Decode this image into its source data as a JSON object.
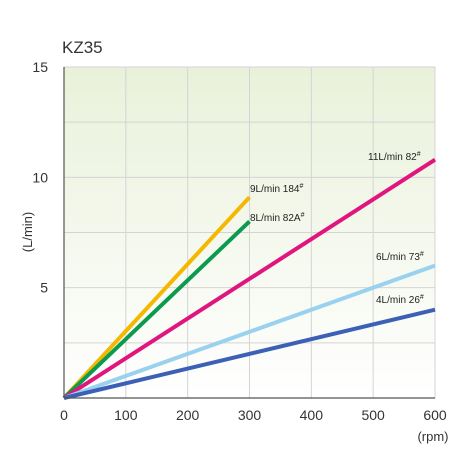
{
  "chart_data": {
    "type": "line",
    "title": "KZ35",
    "xlabel": "(rpm)",
    "ylabel": "(L/min)",
    "xlim": [
      0,
      600
    ],
    "ylim": [
      0,
      15
    ],
    "x_ticks": [
      "0",
      "100",
      "200",
      "300",
      "400",
      "500",
      "600"
    ],
    "y_ticks": [
      "5",
      "10",
      "15"
    ],
    "grid": true,
    "series": [
      {
        "name": "9L/min 184",
        "sup": "#",
        "color": "#f5b800",
        "points": [
          [
            0,
            0
          ],
          [
            300,
            9.1
          ]
        ]
      },
      {
        "name": "8L/min 82A",
        "sup": "#",
        "color": "#0c9a4e",
        "points": [
          [
            0,
            0
          ],
          [
            300,
            8.0
          ]
        ]
      },
      {
        "name": "11L/min 82",
        "sup": "#",
        "color": "#e0157e",
        "points": [
          [
            0,
            0
          ],
          [
            600,
            10.8
          ]
        ]
      },
      {
        "name": "6L/min 73",
        "sup": "#",
        "color": "#99d1ef",
        "points": [
          [
            0,
            0
          ],
          [
            600,
            6.0
          ]
        ]
      },
      {
        "name": "4L/min 26",
        "sup": "#",
        "color": "#3b60b5",
        "points": [
          [
            0,
            0
          ],
          [
            600,
            4.0
          ]
        ]
      }
    ]
  }
}
